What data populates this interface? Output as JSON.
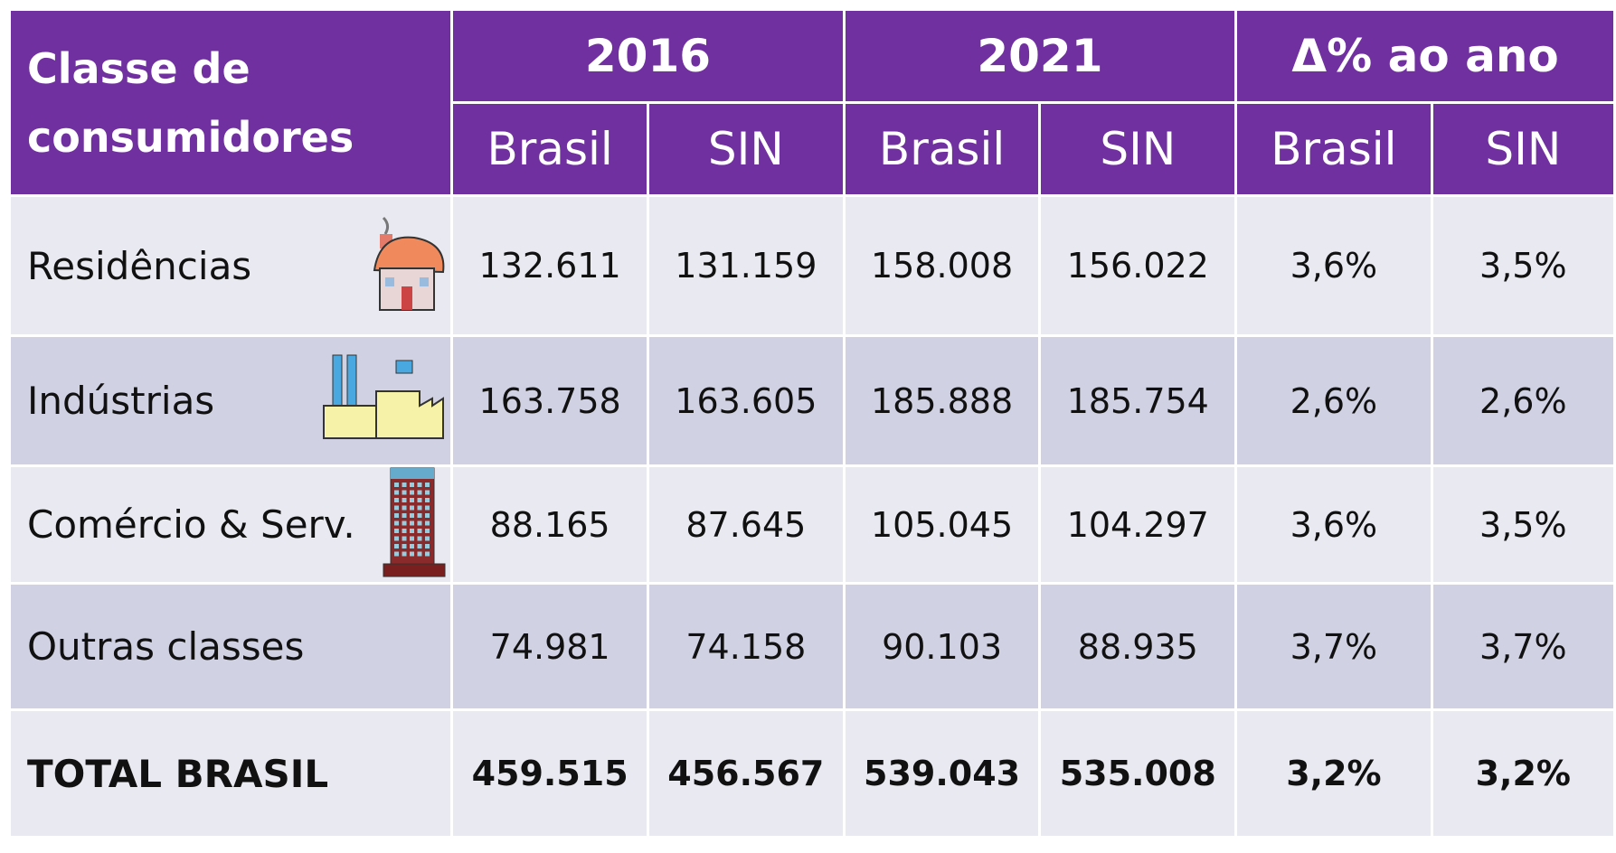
{
  "header": {
    "title": "Classe de consumidores",
    "groups": [
      "2016",
      "2021",
      "Δ% ao ano"
    ],
    "subheaders": [
      "Brasil",
      "SIN",
      "Brasil",
      "SIN",
      "Brasil",
      "SIN"
    ]
  },
  "table": {
    "rows": [
      {
        "label": "Residências",
        "values": [
          "132.611",
          "131.159",
          "158.008",
          "156.022",
          "3,6%",
          "3,5%"
        ]
      },
      {
        "label": "Indústrias",
        "values": [
          "163.758",
          "163.605",
          "185.888",
          "185.754",
          "2,6%",
          "2,6%"
        ]
      },
      {
        "label": "Comércio & Serv.",
        "values": [
          "88.165",
          "87.645",
          "105.045",
          "104.297",
          "3,6%",
          "3,5%"
        ]
      },
      {
        "label": "Outras classes",
        "values": [
          "74.981",
          "74.158",
          "90.103",
          "88.935",
          "3,7%",
          "3,7%"
        ]
      },
      {
        "label": "TOTAL BRASIL",
        "values": [
          "459.515",
          "456.567",
          "539.043",
          "535.008",
          "3,2%",
          "3,2%"
        ]
      }
    ]
  }
}
